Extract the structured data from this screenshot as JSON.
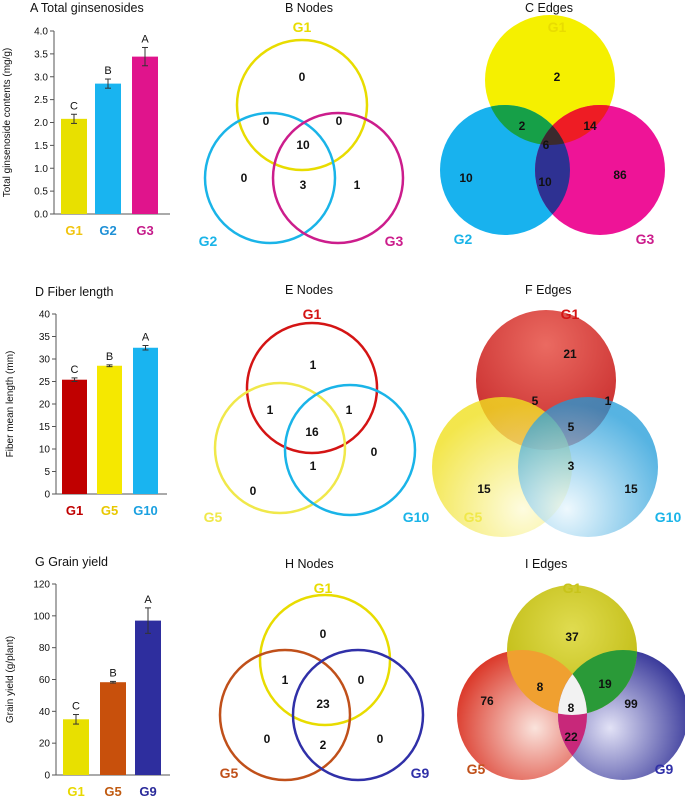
{
  "chart_data": [
    {
      "type": "bar",
      "title": "A Total ginsenosides",
      "ylabel": "Total ginsenoside contents (mg/g)",
      "xlabel": "",
      "categories": [
        "G1",
        "G2",
        "G3"
      ],
      "category_colors": [
        "#f1c40f",
        "#1e90d6",
        "#c51b8a"
      ],
      "values": [
        2.08,
        2.85,
        3.44
      ],
      "errors": [
        0.1,
        0.1,
        0.2
      ],
      "letters": [
        "C",
        "B",
        "A"
      ],
      "bar_colors": [
        "#e8e000",
        "#19b4f0",
        "#e0148c"
      ],
      "ylim": [
        0,
        4.0
      ],
      "yticks": [
        "0.0",
        "0.5",
        "1.0",
        "1.5",
        "2.0",
        "2.5",
        "3.0",
        "3.5",
        "4.0"
      ]
    },
    {
      "type": "venn",
      "title": "B Nodes",
      "sets": [
        "G1",
        "G2",
        "G3"
      ],
      "set_colors": [
        "#e8dc00",
        "#1ab4e8",
        "#cc1d8c"
      ],
      "regions": {
        "only_1": "0",
        "only_2": "0",
        "only_3": "1",
        "1_2": "0",
        "1_3": "0",
        "2_3": "3",
        "all": "10"
      }
    },
    {
      "type": "venn",
      "title": "C Edges",
      "sets": [
        "G1",
        "G2",
        "G3"
      ],
      "set_colors": [
        "#e8dc00",
        "#1ab4e8",
        "#cc1d8c"
      ],
      "regions": {
        "only_1": "2",
        "only_2": "10",
        "only_3": "86",
        "1_2": "2",
        "1_3": "14",
        "2_3": "10",
        "all": "6"
      }
    },
    {
      "type": "bar",
      "title": "D Fiber length",
      "ylabel": "Fiber mean length (mm)",
      "xlabel": "",
      "categories": [
        "G1",
        "G5",
        "G10"
      ],
      "category_colors": [
        "#c00000",
        "#e8c800",
        "#1aa0e0"
      ],
      "values": [
        25.4,
        28.5,
        32.5
      ],
      "errors": [
        0.4,
        0.2,
        0.5
      ],
      "letters": [
        "C",
        "B",
        "A"
      ],
      "bar_colors": [
        "#c00000",
        "#f5e800",
        "#19b4f0"
      ],
      "ylim": [
        0,
        40
      ],
      "yticks": [
        "0",
        "5",
        "10",
        "15",
        "20",
        "25",
        "30",
        "35",
        "40"
      ]
    },
    {
      "type": "venn",
      "title": "E Nodes",
      "sets": [
        "G1",
        "G5",
        "G10"
      ],
      "set_colors": [
        "#d41414",
        "#f0e84a",
        "#1ab4e8"
      ],
      "regions": {
        "only_1": "1",
        "only_2": "0",
        "only_3": "0",
        "1_2": "1",
        "1_3": "1",
        "2_3": "1",
        "all": "16"
      }
    },
    {
      "type": "venn",
      "title": "F Edges",
      "sets": [
        "G1",
        "G5",
        "G10"
      ],
      "set_colors": [
        "#d41414",
        "#f0e84a",
        "#1ab4e8"
      ],
      "regions": {
        "only_1": "21",
        "only_2": "15",
        "only_3": "15",
        "1_2": "5",
        "1_3": "1",
        "2_3": "3",
        "all": "5"
      }
    },
    {
      "type": "bar",
      "title": "G Grain yield",
      "ylabel": "Grain yield (g/plant)",
      "xlabel": "",
      "categories": [
        "G1",
        "G5",
        "G9"
      ],
      "category_colors": [
        "#e8d800",
        "#c05a10",
        "#2a2a9a"
      ],
      "values": [
        35,
        58.3,
        97
      ],
      "errors": [
        3,
        0.5,
        8
      ],
      "letters": [
        "C",
        "B",
        "A"
      ],
      "bar_colors": [
        "#e8e000",
        "#c8500c",
        "#2e2e9e"
      ],
      "ylim": [
        0,
        120
      ],
      "yticks": [
        "0",
        "20",
        "40",
        "60",
        "80",
        "100",
        "120"
      ]
    },
    {
      "type": "venn",
      "title": "H Nodes",
      "sets": [
        "G1",
        "G5",
        "G9"
      ],
      "set_colors": [
        "#e8dc00",
        "#c0501a",
        "#3030a8"
      ],
      "regions": {
        "only_1": "0",
        "only_2": "0",
        "only_3": "0",
        "1_2": "1",
        "1_3": "0",
        "2_3": "2",
        "all": "23"
      }
    },
    {
      "type": "venn",
      "title": "I Edges",
      "sets": [
        "G1",
        "G5",
        "G9"
      ],
      "set_colors": [
        "#c8c41a",
        "#c0501a",
        "#3030a8"
      ],
      "regions": {
        "only_1": "37",
        "only_2": "76",
        "only_3": "99",
        "1_2": "8",
        "1_3": "19",
        "2_3": "22",
        "all": "8"
      }
    }
  ]
}
